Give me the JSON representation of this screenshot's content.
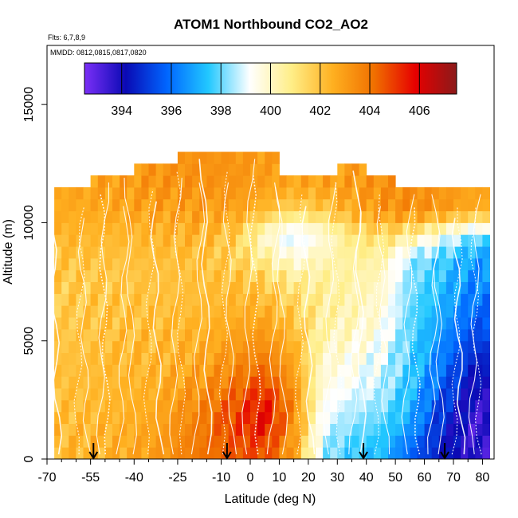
{
  "chart_data": {
    "type": "heatmap",
    "title": "ATOM1 Northbound CO2_AO2",
    "subtitle_flights": "Flts: 6,7,8,9",
    "subtitle_dates": "MMDD: 0812,0815,0817,0820",
    "xlabel": "Latitude (deg N)",
    "ylabel": "Altitude (m)",
    "xlim": [
      -70,
      84
    ],
    "ylim": [
      0,
      17500
    ],
    "x_ticks": [
      -70,
      -55,
      -40,
      -25,
      -10,
      0,
      10,
      20,
      30,
      40,
      50,
      60,
      70,
      80
    ],
    "y_ticks": [
      0,
      5000,
      10000,
      15000
    ],
    "colorbar": {
      "range": [
        392.5,
        407.5
      ],
      "ticks": [
        394,
        396,
        398,
        400,
        402,
        404,
        406
      ],
      "stops": [
        "#7b2ff7",
        "#0a0ab4",
        "#0066ff",
        "#22c8ff",
        "#ffffff",
        "#ffee88",
        "#ffb020",
        "#f07000",
        "#e60000",
        "#8b1a1a"
      ]
    },
    "profile_arrows_lat": [
      -54,
      -8,
      39,
      67
    ],
    "grid_lat_bounds": [
      -70,
      -55,
      -40,
      -25,
      -10,
      0,
      10,
      20,
      30,
      40,
      50,
      60,
      70,
      84
    ],
    "grid_alt_top": [
      11500,
      12000,
      12200,
      13000,
      13000,
      12800,
      12000,
      12000,
      12500,
      12000,
      11500,
      11500,
      11500
    ],
    "grid_alt_rows": [
      500,
      1500,
      2500,
      3500,
      4500,
      5500,
      6500,
      7500,
      8500,
      9500,
      10500,
      11500,
      12500
    ],
    "grid_values": [
      [
        402.3,
        402.5,
        403.0,
        404.0,
        404.6,
        404.8,
        403.0,
        398.5,
        397.6,
        397.4,
        395.8,
        394.5,
        393.6
      ],
      [
        402.2,
        402.4,
        402.8,
        403.8,
        405.0,
        405.8,
        403.4,
        399.0,
        398.3,
        397.8,
        397.0,
        394.8,
        393.4
      ],
      [
        402.1,
        402.3,
        402.6,
        403.5,
        404.6,
        405.5,
        403.6,
        399.4,
        398.8,
        398.5,
        397.2,
        395.4,
        393.8
      ],
      [
        402.1,
        402.3,
        402.4,
        403.0,
        403.8,
        404.5,
        403.0,
        399.7,
        399.3,
        398.8,
        397.6,
        396.0,
        394.2
      ],
      [
        402.0,
        402.2,
        402.3,
        402.6,
        403.2,
        403.6,
        402.6,
        400.0,
        399.6,
        399.1,
        397.8,
        396.4,
        394.8
      ],
      [
        401.9,
        402.1,
        402.2,
        402.4,
        402.8,
        403.0,
        402.2,
        400.4,
        400.0,
        399.5,
        397.9,
        396.8,
        395.4
      ],
      [
        401.8,
        402.0,
        402.1,
        402.2,
        402.4,
        402.4,
        401.6,
        400.6,
        400.3,
        399.8,
        398.0,
        397.2,
        396.0
      ],
      [
        401.8,
        401.9,
        402.0,
        402.1,
        402.1,
        401.8,
        400.8,
        400.6,
        400.4,
        400.0,
        398.2,
        397.5,
        396.4
      ],
      [
        402.0,
        402.0,
        402.1,
        402.1,
        401.6,
        400.6,
        399.6,
        400.2,
        400.6,
        400.4,
        398.4,
        397.7,
        396.8
      ],
      [
        402.4,
        402.3,
        402.4,
        402.4,
        401.8,
        399.8,
        398.6,
        399.6,
        401.0,
        401.4,
        400.8,
        399.6,
        398.2
      ],
      [
        402.6,
        402.7,
        402.9,
        403.0,
        402.9,
        402.2,
        401.4,
        401.8,
        402.6,
        403.2,
        403.4,
        403.2,
        402.6
      ],
      [
        402.8,
        402.9,
        403.2,
        403.3,
        403.2,
        402.9,
        402.7,
        402.8,
        403.0,
        403.3,
        403.4,
        403.2,
        402.8
      ],
      [
        403.0,
        403.0,
        403.2,
        403.3,
        403.2,
        403.0,
        402.9,
        402.9,
        403.0,
        403.2,
        403.3,
        403.2,
        403.0
      ]
    ]
  }
}
